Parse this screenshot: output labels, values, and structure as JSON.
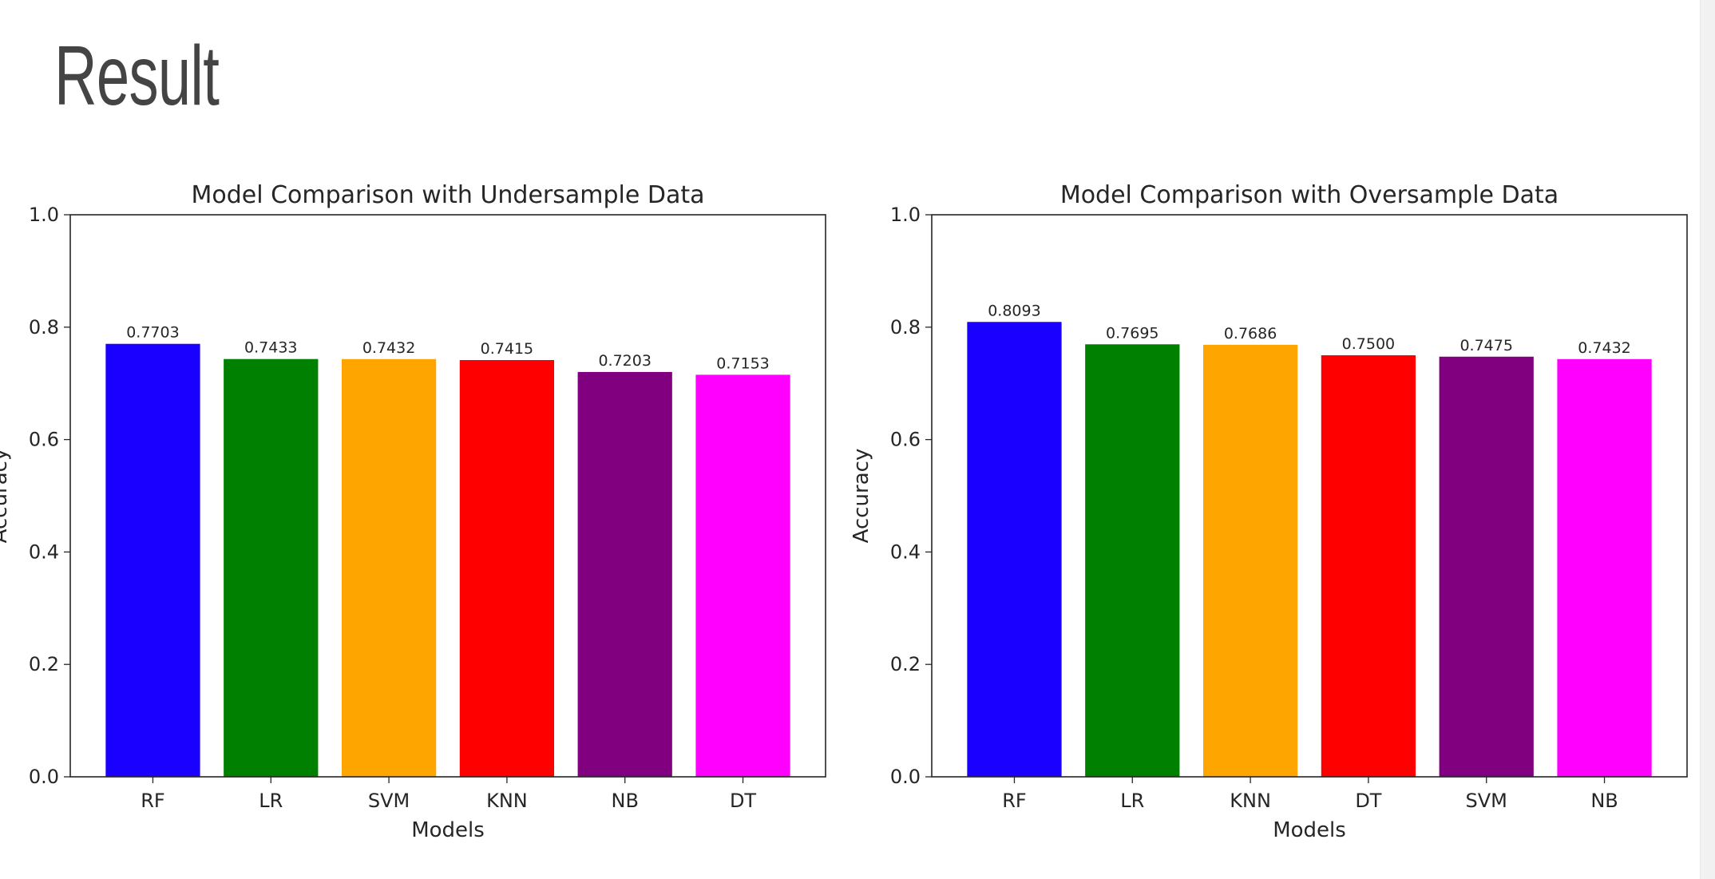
{
  "slide": {
    "title": "Result"
  },
  "chart_data": [
    {
      "type": "bar",
      "title": "Model Comparison with Undersample Data",
      "xlabel": "Models",
      "ylabel": "Accuracy",
      "ylim": [
        0,
        1.0
      ],
      "yticks": [
        "0.0",
        "0.2",
        "0.4",
        "0.6",
        "0.8",
        "1.0"
      ],
      "categories": [
        "RF",
        "LR",
        "SVM",
        "KNN",
        "NB",
        "DT"
      ],
      "values": [
        0.7703,
        0.7433,
        0.7432,
        0.7415,
        0.7203,
        0.7153
      ],
      "value_labels": [
        "0.7703",
        "0.7433",
        "0.7432",
        "0.7415",
        "0.7203",
        "0.7153"
      ],
      "colors": [
        "#1a00ff",
        "#008000",
        "#ffa500",
        "#ff0000",
        "#800080",
        "#ff00ff"
      ],
      "grid": false
    },
    {
      "type": "bar",
      "title": "Model Comparison with Oversample Data",
      "xlabel": "Models",
      "ylabel": "Accuracy",
      "ylim": [
        0,
        1.0
      ],
      "yticks": [
        "0.0",
        "0.2",
        "0.4",
        "0.6",
        "0.8",
        "1.0"
      ],
      "categories": [
        "RF",
        "LR",
        "KNN",
        "DT",
        "SVM",
        "NB"
      ],
      "values": [
        0.8093,
        0.7695,
        0.7686,
        0.75,
        0.7475,
        0.7432
      ],
      "value_labels": [
        "0.8093",
        "0.7695",
        "0.7686",
        "0.7500",
        "0.7475",
        "0.7432"
      ],
      "colors": [
        "#1a00ff",
        "#008000",
        "#ffa500",
        "#ff0000",
        "#800080",
        "#ff00ff"
      ],
      "grid": false
    }
  ]
}
